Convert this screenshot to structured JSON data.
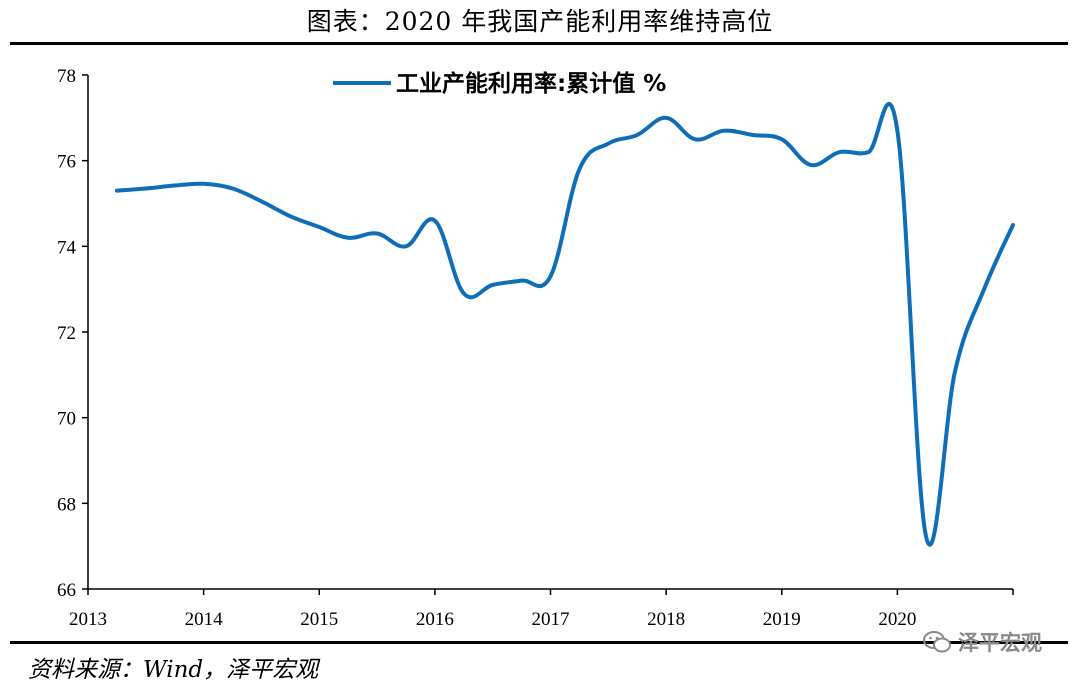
{
  "title": "图表：2020 年我国产能利用率维持高位",
  "source": "资料来源：Wind，泽平宏观",
  "watermark": "泽平宏观",
  "colors": {
    "series": "#0E6FB8",
    "axis": "#000000"
  },
  "chart_data": {
    "type": "line",
    "ylim": [
      66,
      78
    ],
    "yticks": [
      66,
      68,
      70,
      72,
      74,
      76,
      78
    ],
    "xticks": [
      2013,
      2014,
      2015,
      2016,
      2017,
      2018,
      2019,
      2020
    ],
    "xlim": [
      2013,
      2021
    ],
    "grid": false,
    "legend": "top-center",
    "series": [
      {
        "name": "工业产能利用率:累计值 %",
        "points": [
          [
            2013.25,
            75.3
          ],
          [
            2013.5,
            75.35
          ],
          [
            2013.75,
            75.42
          ],
          [
            2014.0,
            75.46
          ],
          [
            2014.25,
            75.35
          ],
          [
            2014.5,
            75.05
          ],
          [
            2014.75,
            74.7
          ],
          [
            2015.0,
            74.45
          ],
          [
            2015.25,
            74.2
          ],
          [
            2015.5,
            74.3
          ],
          [
            2015.75,
            74.0
          ],
          [
            2016.0,
            74.6
          ],
          [
            2016.25,
            72.9
          ],
          [
            2016.5,
            73.1
          ],
          [
            2016.75,
            73.2
          ],
          [
            2017.0,
            73.3
          ],
          [
            2017.25,
            75.8
          ],
          [
            2017.5,
            76.4
          ],
          [
            2017.75,
            76.6
          ],
          [
            2018.0,
            77.0
          ],
          [
            2018.25,
            76.5
          ],
          [
            2018.5,
            76.7
          ],
          [
            2018.75,
            76.6
          ],
          [
            2019.0,
            76.5
          ],
          [
            2019.25,
            75.9
          ],
          [
            2019.5,
            76.2
          ],
          [
            2019.75,
            76.2
          ],
          [
            2020.0,
            76.7
          ],
          [
            2020.25,
            67.2
          ],
          [
            2020.5,
            71.1
          ],
          [
            2020.75,
            73.0
          ],
          [
            2021.0,
            74.5
          ]
        ]
      }
    ]
  }
}
